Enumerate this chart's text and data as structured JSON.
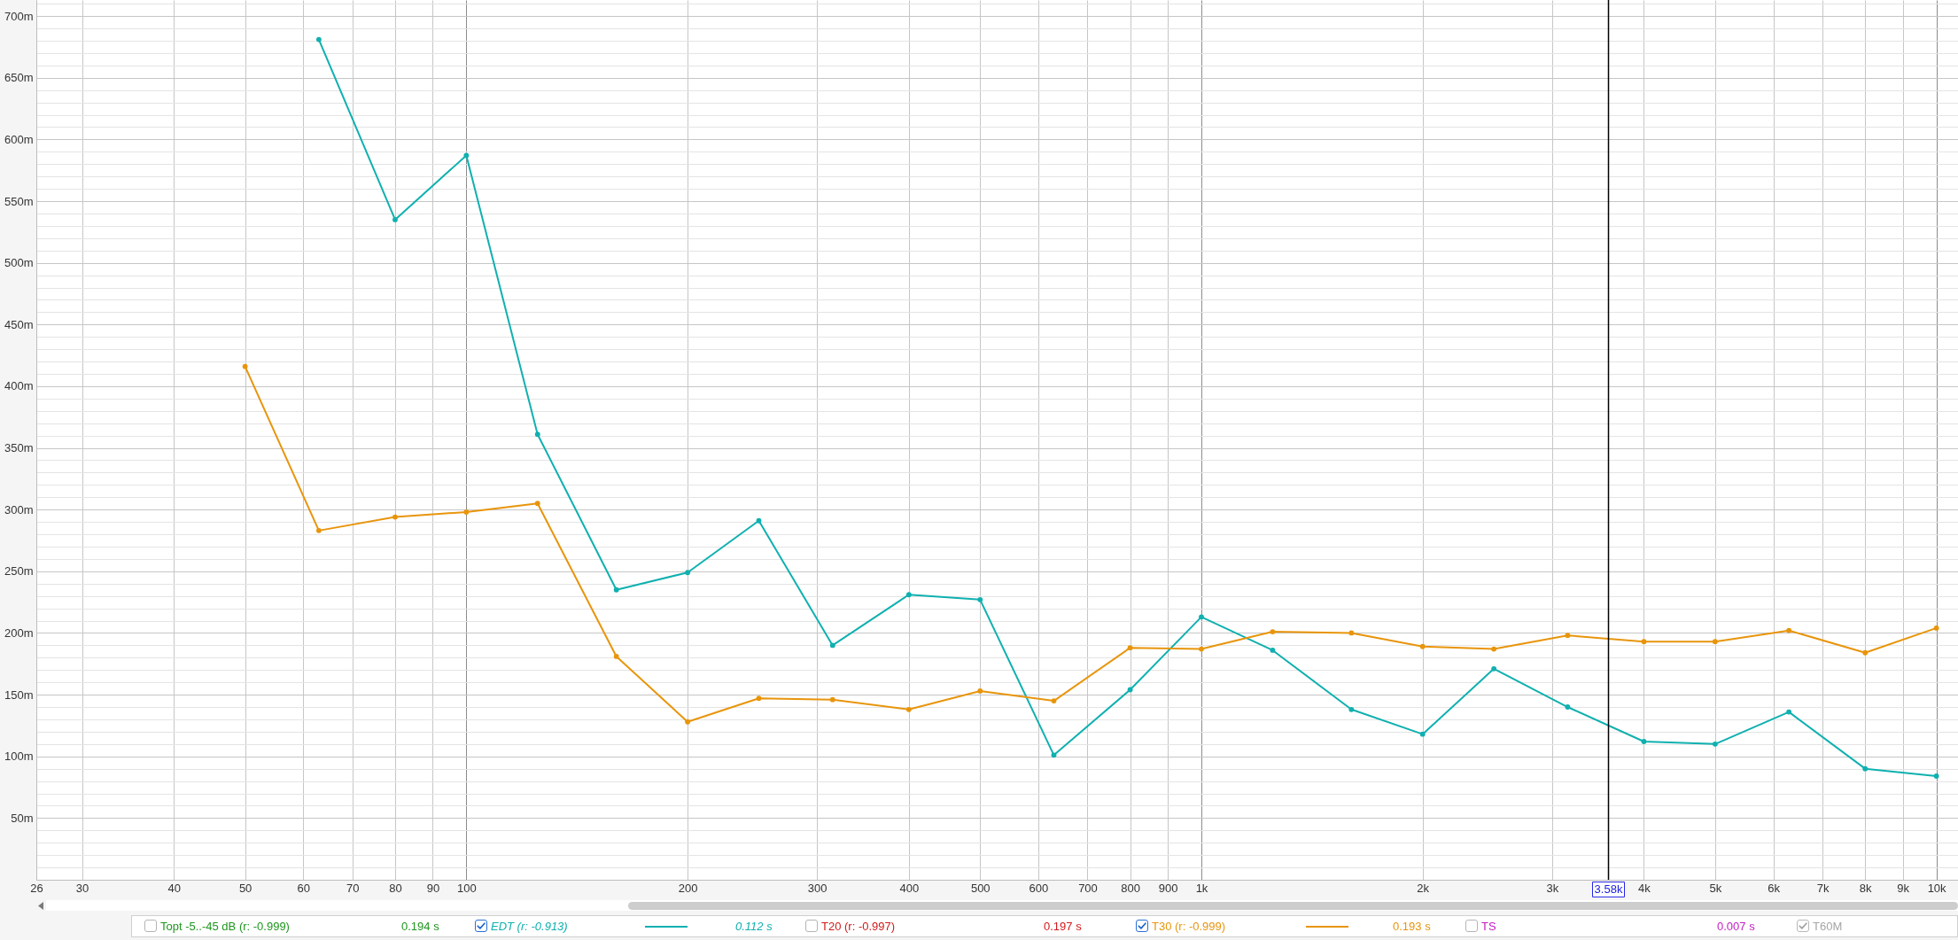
{
  "chart_data": {
    "type": "line",
    "x": [
      50,
      63,
      80,
      100,
      125,
      160,
      200,
      250,
      315,
      400,
      500,
      630,
      800,
      1000,
      1250,
      1600,
      2000,
      2500,
      3150,
      4000,
      5000,
      6300,
      8000,
      10000
    ],
    "series": [
      {
        "name": "EDT (r: -0.913)",
        "color": "#10b0b0",
        "values": [
          null,
          681,
          535,
          587,
          361,
          235,
          249,
          291,
          190,
          231,
          227,
          101,
          154,
          213,
          186,
          138,
          118,
          171,
          140,
          112,
          110,
          136,
          90,
          84
        ]
      },
      {
        "name": "T30 (r: -0.999)",
        "color": "#e8950c",
        "values": [
          416,
          283,
          294,
          298,
          305,
          181,
          128,
          147,
          146,
          138,
          153,
          145,
          188,
          187,
          201,
          200,
          189,
          187,
          198,
          193,
          193,
          202,
          184,
          204
        ]
      }
    ],
    "log": "x",
    "xlim": [
      26,
      10700
    ],
    "xticks": [
      26,
      30,
      40,
      50,
      60,
      70,
      80,
      90,
      100,
      200,
      300,
      400,
      500,
      600,
      700,
      800,
      900,
      {
        "value": 1000,
        "label": "1k"
      },
      {
        "value": 2000,
        "label": "2k"
      },
      {
        "value": 3000,
        "label": "3k"
      },
      {
        "value": 4000,
        "label": "4k"
      },
      {
        "value": 5000,
        "label": "5k"
      },
      {
        "value": 6000,
        "label": "6k"
      },
      {
        "value": 7000,
        "label": "7k"
      },
      {
        "value": 8000,
        "label": "8k"
      },
      {
        "value": 9000,
        "label": "9k"
      },
      {
        "value": 10000,
        "label": "10k"
      }
    ],
    "ylim": [
      0,
      713
    ],
    "yticks": [
      {
        "value": 10,
        "label": null
      },
      {
        "value": 20,
        "label": null
      },
      {
        "value": 30,
        "label": null
      },
      {
        "value": 40,
        "label": null
      },
      {
        "value": 50,
        "label": "50m"
      },
      {
        "value": 60,
        "label": null
      },
      {
        "value": 70,
        "label": null
      },
      {
        "value": 80,
        "label": null
      },
      {
        "value": 90,
        "label": null
      },
      {
        "value": 100,
        "label": "100m"
      },
      {
        "value": 110,
        "label": null
      },
      {
        "value": 120,
        "label": null
      },
      {
        "value": 130,
        "label": null
      },
      {
        "value": 140,
        "label": null
      },
      {
        "value": 150,
        "label": "150m"
      },
      {
        "value": 160,
        "label": null
      },
      {
        "value": 170,
        "label": null
      },
      {
        "value": 180,
        "label": null
      },
      {
        "value": 190,
        "label": null
      },
      {
        "value": 200,
        "label": "200m"
      },
      {
        "value": 210,
        "label": null
      },
      {
        "value": 220,
        "label": null
      },
      {
        "value": 230,
        "label": null
      },
      {
        "value": 240,
        "label": null
      },
      {
        "value": 250,
        "label": "250m"
      },
      {
        "value": 260,
        "label": null
      },
      {
        "value": 270,
        "label": null
      },
      {
        "value": 280,
        "label": null
      },
      {
        "value": 290,
        "label": null
      },
      {
        "value": 300,
        "label": "300m"
      },
      {
        "value": 310,
        "label": null
      },
      {
        "value": 320,
        "label": null
      },
      {
        "value": 330,
        "label": null
      },
      {
        "value": 340,
        "label": null
      },
      {
        "value": 350,
        "label": "350m"
      },
      {
        "value": 360,
        "label": null
      },
      {
        "value": 370,
        "label": null
      },
      {
        "value": 380,
        "label": null
      },
      {
        "value": 390,
        "label": null
      },
      {
        "value": 400,
        "label": "400m"
      },
      {
        "value": 410,
        "label": null
      },
      {
        "value": 420,
        "label": null
      },
      {
        "value": 430,
        "label": null
      },
      {
        "value": 440,
        "label": null
      },
      {
        "value": 450,
        "label": "450m"
      },
      {
        "value": 460,
        "label": null
      },
      {
        "value": 470,
        "label": null
      },
      {
        "value": 480,
        "label": null
      },
      {
        "value": 490,
        "label": null
      },
      {
        "value": 500,
        "label": "500m"
      },
      {
        "value": 510,
        "label": null
      },
      {
        "value": 520,
        "label": null
      },
      {
        "value": 530,
        "label": null
      },
      {
        "value": 540,
        "label": null
      },
      {
        "value": 550,
        "label": "550m"
      },
      {
        "value": 560,
        "label": null
      },
      {
        "value": 570,
        "label": null
      },
      {
        "value": 580,
        "label": null
      },
      {
        "value": 590,
        "label": null
      },
      {
        "value": 600,
        "label": "600m"
      },
      {
        "value": 610,
        "label": null
      },
      {
        "value": 620,
        "label": null
      },
      {
        "value": 630,
        "label": null
      },
      {
        "value": 640,
        "label": null
      },
      {
        "value": 650,
        "label": "650m"
      },
      {
        "value": 660,
        "label": null
      },
      {
        "value": 670,
        "label": null
      },
      {
        "value": 680,
        "label": null
      },
      {
        "value": 690,
        "label": null
      },
      {
        "value": 700,
        "label": "700m"
      },
      {
        "value": 710,
        "label": null
      }
    ],
    "grid": true,
    "marker": "circle",
    "line_style": "solid",
    "legend": "bottom",
    "ref_lines": [
      {
        "axis": "x",
        "value": 3580,
        "label": "3.58k",
        "color": "#000000"
      }
    ],
    "annotations": [
      "Topt -5..-45 dB (r: -0.999)",
      "0.194 s",
      "0.112 s",
      "T20 (r: -0.997)",
      "0.197 s",
      "0.193 s",
      "TS",
      "0.007 s",
      "T60M"
    ]
  }
}
